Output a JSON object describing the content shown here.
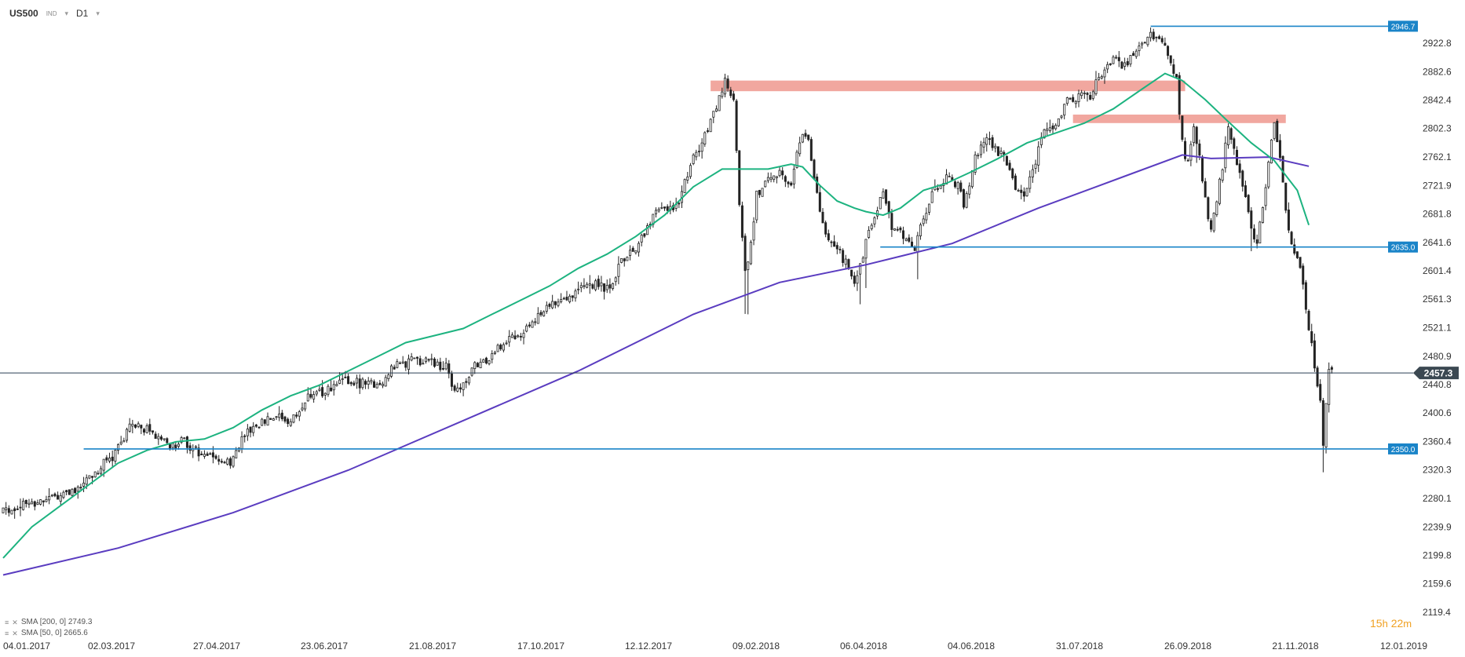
{
  "header": {
    "symbol": "US500",
    "exchange": "IND",
    "timeframe": "D1"
  },
  "legend": [
    {
      "label": "SMA [200, 0] 2749.3"
    },
    {
      "label": "SMA [50, 0] 2665.6"
    }
  ],
  "timer": {
    "hours": "15",
    "h": "h",
    "minutes": "22",
    "m": "m"
  },
  "colors": {
    "candle": "#222222",
    "sma200": "#5a3cc0",
    "sma50": "#1db380",
    "level_line": "#1a84c8",
    "zone": "#f0a29a",
    "price_line": "#2a3f55",
    "current_tag": "#3b4852"
  },
  "chart_data": {
    "type": "candlestick",
    "symbol": "US500",
    "timeframe": "D1",
    "ylim": [
      2119.4,
      2960
    ],
    "y_ticks": [
      "2922.8",
      "2882.6",
      "2842.4",
      "2802.3",
      "2762.1",
      "2721.9",
      "2681.8",
      "2641.6",
      "2601.4",
      "2561.3",
      "2521.1",
      "2480.9",
      "2440.8",
      "2400.6",
      "2360.4",
      "2320.3",
      "2280.1",
      "2239.9",
      "2199.8",
      "2159.6",
      "2119.4"
    ],
    "x_labels": [
      "04.01.2017",
      "02.03.2017",
      "27.04.2017",
      "23.06.2017",
      "21.08.2017",
      "17.10.2017",
      "12.12.2017",
      "09.02.2018",
      "06.04.2018",
      "04.06.2018",
      "31.07.2018",
      "26.09.2018",
      "21.11.2018",
      "12.01.2019"
    ],
    "price_path": [
      [
        0,
        2262
      ],
      [
        15,
        2280
      ],
      [
        25,
        2290
      ],
      [
        38,
        2340
      ],
      [
        45,
        2385
      ],
      [
        52,
        2375
      ],
      [
        58,
        2355
      ],
      [
        63,
        2360
      ],
      [
        68,
        2345
      ],
      [
        74,
        2340
      ],
      [
        79,
        2330
      ],
      [
        84,
        2368
      ],
      [
        90,
        2390
      ],
      [
        95,
        2395
      ],
      [
        100,
        2385
      ],
      [
        106,
        2425
      ],
      [
        112,
        2430
      ],
      [
        118,
        2445
      ],
      [
        124,
        2443
      ],
      [
        130,
        2440
      ],
      [
        136,
        2465
      ],
      [
        142,
        2475
      ],
      [
        148,
        2475
      ],
      [
        154,
        2465
      ],
      [
        157,
        2435
      ],
      [
        160,
        2440
      ],
      [
        164,
        2465
      ],
      [
        169,
        2475
      ],
      [
        175,
        2505
      ],
      [
        180,
        2515
      ],
      [
        186,
        2535
      ],
      [
        192,
        2560
      ],
      [
        198,
        2570
      ],
      [
        204,
        2585
      ],
      [
        210,
        2575
      ],
      [
        216,
        2620
      ],
      [
        222,
        2645
      ],
      [
        228,
        2690
      ],
      [
        234,
        2690
      ],
      [
        240,
        2760
      ],
      [
        246,
        2810
      ],
      [
        251,
        2870
      ],
      [
        254,
        2840
      ],
      [
        256,
        2690
      ],
      [
        258,
        2600
      ],
      [
        260,
        2640
      ],
      [
        262,
        2710
      ],
      [
        266,
        2730
      ],
      [
        270,
        2745
      ],
      [
        274,
        2720
      ],
      [
        276,
        2770
      ],
      [
        278,
        2800
      ],
      [
        280,
        2790
      ],
      [
        282,
        2725
      ],
      [
        285,
        2670
      ],
      [
        288,
        2640
      ],
      [
        292,
        2620
      ],
      [
        296,
        2585
      ],
      [
        300,
        2640
      ],
      [
        304,
        2690
      ],
      [
        306,
        2710
      ],
      [
        309,
        2665
      ],
      [
        313,
        2650
      ],
      [
        317,
        2635
      ],
      [
        320,
        2675
      ],
      [
        324,
        2720
      ],
      [
        328,
        2730
      ],
      [
        332,
        2725
      ],
      [
        334,
        2690
      ],
      [
        338,
        2760
      ],
      [
        342,
        2790
      ],
      [
        346,
        2770
      ],
      [
        348,
        2760
      ],
      [
        352,
        2720
      ],
      [
        354,
        2705
      ],
      [
        358,
        2740
      ],
      [
        362,
        2800
      ],
      [
        366,
        2810
      ],
      [
        370,
        2840
      ],
      [
        374,
        2850
      ],
      [
        378,
        2850
      ],
      [
        382,
        2880
      ],
      [
        386,
        2905
      ],
      [
        390,
        2890
      ],
      [
        394,
        2915
      ],
      [
        398,
        2935
      ],
      [
        402,
        2930
      ],
      [
        406,
        2900
      ],
      [
        408,
        2870
      ],
      [
        410,
        2780
      ],
      [
        412,
        2750
      ],
      [
        414,
        2800
      ],
      [
        416,
        2760
      ],
      [
        418,
        2700
      ],
      [
        420,
        2655
      ],
      [
        422,
        2700
      ],
      [
        424,
        2750
      ],
      [
        426,
        2810
      ],
      [
        428,
        2770
      ],
      [
        430,
        2740
      ],
      [
        432,
        2700
      ],
      [
        434,
        2660
      ],
      [
        436,
        2640
      ],
      [
        438,
        2690
      ],
      [
        440,
        2750
      ],
      [
        442,
        2810
      ],
      [
        444,
        2760
      ],
      [
        446,
        2690
      ],
      [
        448,
        2640
      ],
      [
        450,
        2620
      ],
      [
        452,
        2580
      ],
      [
        454,
        2520
      ],
      [
        456,
        2470
      ],
      [
        458,
        2420
      ],
      [
        459,
        2350
      ],
      [
        460,
        2420
      ],
      [
        461,
        2458
      ],
      [
        462,
        2457
      ]
    ],
    "sma200": [
      [
        0,
        2172
      ],
      [
        40,
        2210
      ],
      [
        80,
        2260
      ],
      [
        120,
        2320
      ],
      [
        160,
        2390
      ],
      [
        200,
        2460
      ],
      [
        240,
        2540
      ],
      [
        270,
        2585
      ],
      [
        300,
        2610
      ],
      [
        330,
        2640
      ],
      [
        360,
        2690
      ],
      [
        390,
        2735
      ],
      [
        410,
        2765
      ],
      [
        420,
        2760
      ],
      [
        440,
        2762
      ],
      [
        454,
        2749
      ]
    ],
    "sma50": [
      [
        0,
        2196
      ],
      [
        10,
        2240
      ],
      [
        20,
        2270
      ],
      [
        30,
        2300
      ],
      [
        40,
        2330
      ],
      [
        50,
        2348
      ],
      [
        60,
        2360
      ],
      [
        70,
        2364
      ],
      [
        80,
        2380
      ],
      [
        90,
        2405
      ],
      [
        100,
        2425
      ],
      [
        110,
        2440
      ],
      [
        120,
        2460
      ],
      [
        130,
        2480
      ],
      [
        140,
        2500
      ],
      [
        150,
        2510
      ],
      [
        160,
        2520
      ],
      [
        170,
        2540
      ],
      [
        180,
        2560
      ],
      [
        190,
        2580
      ],
      [
        200,
        2605
      ],
      [
        210,
        2625
      ],
      [
        220,
        2650
      ],
      [
        230,
        2680
      ],
      [
        240,
        2720
      ],
      [
        250,
        2745
      ],
      [
        258,
        2745
      ],
      [
        266,
        2745
      ],
      [
        274,
        2752
      ],
      [
        278,
        2748
      ],
      [
        284,
        2722
      ],
      [
        290,
        2700
      ],
      [
        296,
        2690
      ],
      [
        300,
        2685
      ],
      [
        306,
        2680
      ],
      [
        312,
        2690
      ],
      [
        320,
        2715
      ],
      [
        328,
        2725
      ],
      [
        336,
        2740
      ],
      [
        346,
        2760
      ],
      [
        356,
        2782
      ],
      [
        366,
        2796
      ],
      [
        376,
        2810
      ],
      [
        386,
        2830
      ],
      [
        396,
        2858
      ],
      [
        404,
        2880
      ],
      [
        410,
        2870
      ],
      [
        418,
        2843
      ],
      [
        426,
        2812
      ],
      [
        434,
        2782
      ],
      [
        442,
        2757
      ],
      [
        450,
        2715
      ],
      [
        454,
        2666
      ]
    ],
    "levels": [
      {
        "value": 2946.7,
        "label": "2946.7",
        "x_from": 399,
        "x_to": 470
      },
      {
        "value": 2635.0,
        "label": "2635.0",
        "x_from": 305,
        "x_to": 470
      },
      {
        "value": 2350.0,
        "label": "2350.0",
        "x_from": 28,
        "x_to": 470
      }
    ],
    "zones": [
      {
        "low": 2855,
        "high": 2870,
        "x_from": 246,
        "x_to": 411
      },
      {
        "low": 2810,
        "high": 2822,
        "x_from": 372,
        "x_to": 446
      }
    ],
    "current_price": {
      "value": 2457.3,
      "label": "2457.3"
    }
  }
}
